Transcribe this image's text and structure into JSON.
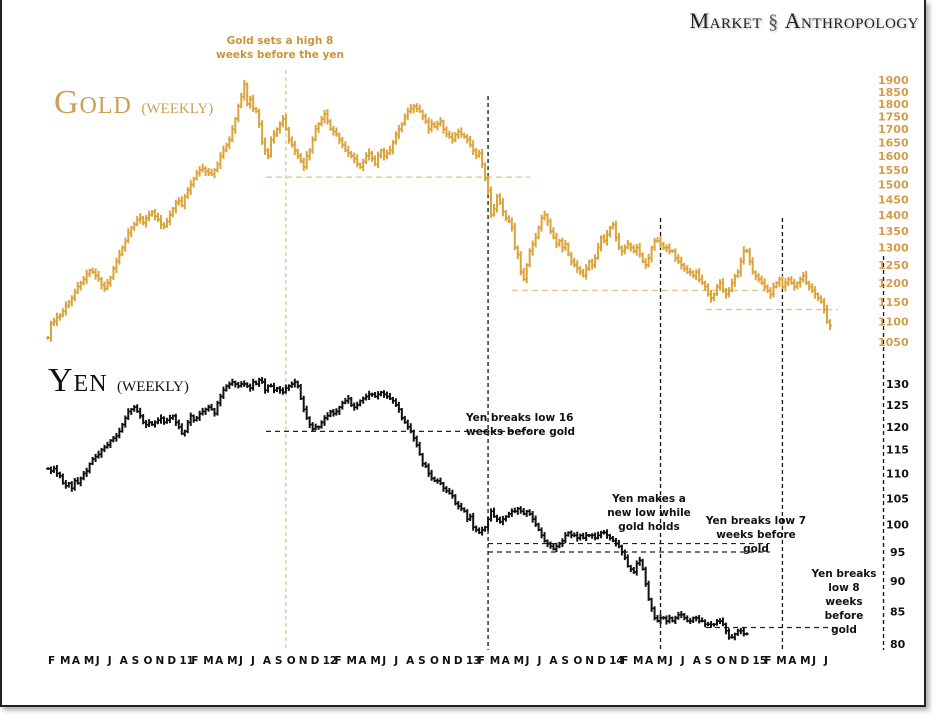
{
  "brand": {
    "left": "Market",
    "right": "Anthropology",
    "icon": "dna-helix-icon"
  },
  "chart_data": [
    {
      "type": "line",
      "name": "gold",
      "title": "Gold",
      "subtitle": "(WEEKLY)",
      "color": "#dba33a",
      "scale": "log",
      "ylim": [
        1040,
        1920
      ],
      "yticks": [
        1900,
        1850,
        1800,
        1750,
        1700,
        1650,
        1600,
        1550,
        1500,
        1450,
        1400,
        1350,
        1300,
        1250,
        1200,
        1150,
        1100,
        1050
      ],
      "x_start": "2010-02",
      "x_end": "2015-07",
      "values": [
        1060,
        1095,
        1100,
        1110,
        1115,
        1125,
        1140,
        1150,
        1160,
        1175,
        1190,
        1200,
        1210,
        1225,
        1235,
        1230,
        1220,
        1210,
        1195,
        1185,
        1200,
        1215,
        1240,
        1260,
        1280,
        1300,
        1320,
        1345,
        1360,
        1370,
        1385,
        1390,
        1375,
        1390,
        1400,
        1410,
        1395,
        1385,
        1370,
        1365,
        1380,
        1400,
        1420,
        1440,
        1445,
        1430,
        1460,
        1480,
        1500,
        1520,
        1540,
        1550,
        1555,
        1545,
        1540,
        1535,
        1550,
        1570,
        1600,
        1620,
        1640,
        1660,
        1700,
        1740,
        1790,
        1830,
        1880,
        1800,
        1820,
        1780,
        1770,
        1720,
        1650,
        1620,
        1600,
        1660,
        1680,
        1700,
        1720,
        1740,
        1700,
        1660,
        1640,
        1620,
        1600,
        1580,
        1560,
        1600,
        1620,
        1660,
        1700,
        1720,
        1740,
        1760,
        1730,
        1700,
        1690,
        1680,
        1660,
        1640,
        1620,
        1610,
        1600,
        1590,
        1570,
        1560,
        1580,
        1600,
        1610,
        1590,
        1570,
        1600,
        1620,
        1600,
        1610,
        1620,
        1650,
        1680,
        1700,
        1720,
        1750,
        1770,
        1780,
        1790,
        1780,
        1770,
        1750,
        1730,
        1700,
        1720,
        1710,
        1720,
        1730,
        1700,
        1680,
        1670,
        1660,
        1680,
        1690,
        1680,
        1670,
        1660,
        1640,
        1620,
        1600,
        1610,
        1570,
        1520,
        1480,
        1400,
        1420,
        1460,
        1440,
        1410,
        1390,
        1380,
        1360,
        1300,
        1280,
        1230,
        1210,
        1250,
        1290,
        1310,
        1330,
        1360,
        1390,
        1400,
        1380,
        1350,
        1330,
        1310,
        1320,
        1300,
        1310,
        1280,
        1260,
        1250,
        1240,
        1230,
        1220,
        1240,
        1260,
        1250,
        1270,
        1300,
        1330,
        1320,
        1340,
        1360,
        1370,
        1330,
        1300,
        1290,
        1300,
        1310,
        1300,
        1290,
        1300,
        1280,
        1260,
        1250,
        1270,
        1300,
        1320,
        1320,
        1310,
        1300,
        1300,
        1290,
        1290,
        1270,
        1260,
        1250,
        1240,
        1230,
        1230,
        1220,
        1230,
        1210,
        1200,
        1190,
        1170,
        1160,
        1170,
        1190,
        1200,
        1180,
        1170,
        1180,
        1200,
        1220,
        1230,
        1260,
        1290,
        1290,
        1260,
        1230,
        1220,
        1210,
        1200,
        1190,
        1180,
        1170,
        1190,
        1200,
        1210,
        1190,
        1200,
        1210,
        1200,
        1190,
        1200,
        1210,
        1220,
        1200,
        1190,
        1180,
        1170,
        1160,
        1150,
        1130,
        1100,
        1090
      ],
      "reference_lines": [
        {
          "value": 1525,
          "label": "gold-range-low-2011"
        },
        {
          "value": 1180,
          "label": "gold-low-2013"
        },
        {
          "value": 1130,
          "label": "gold-low-2014"
        }
      ]
    },
    {
      "type": "line",
      "name": "yen",
      "title": "Yen",
      "subtitle": "(WEEKLY)",
      "color": "#111111",
      "scale": "log",
      "ylim": [
        79,
        132
      ],
      "yticks": [
        130,
        125,
        120,
        115,
        110,
        105,
        100,
        95,
        90,
        85,
        80
      ],
      "x_start": "2010-02",
      "x_end": "2015-07",
      "values": [
        111,
        110.5,
        111,
        110,
        109.5,
        108,
        107.5,
        108,
        107,
        108.5,
        108,
        109,
        110,
        110.5,
        112,
        113,
        113.5,
        114,
        115,
        115.5,
        116,
        117,
        117.5,
        118,
        119,
        120.5,
        122,
        123.5,
        124,
        124.5,
        123.5,
        122.5,
        121,
        120.5,
        121,
        120.5,
        121,
        121.5,
        122,
        121,
        121.5,
        122,
        122.5,
        121,
        120,
        118.5,
        119,
        121,
        122.5,
        121.5,
        122,
        123,
        123.5,
        124,
        124.5,
        124,
        123,
        125.5,
        127,
        128.5,
        129.5,
        130,
        130.5,
        130,
        129.5,
        130,
        130,
        129.5,
        129,
        130.5,
        130,
        131,
        130.5,
        128.5,
        129.5,
        129.5,
        128.5,
        129,
        128.5,
        128,
        129,
        129.5,
        130,
        130.5,
        129.5,
        126.5,
        124,
        122,
        120.5,
        119.5,
        120,
        120,
        121,
        122,
        122.5,
        123.5,
        123,
        123.5,
        124.5,
        125.5,
        126,
        126.5,
        125,
        124.5,
        125,
        126,
        126.5,
        127,
        127.5,
        127.5,
        127,
        127.5,
        128,
        127.5,
        127,
        126.5,
        126,
        125,
        124,
        122,
        121,
        120,
        119,
        117.5,
        116,
        114,
        112,
        111.5,
        110,
        109,
        108.5,
        108.5,
        108,
        107,
        106.5,
        106,
        105.5,
        104,
        103.5,
        103,
        102.5,
        101,
        101.5,
        99.5,
        99,
        98.5,
        99,
        99.5,
        101,
        102.5,
        101.5,
        101,
        100.5,
        101,
        101.5,
        102,
        102.5,
        102.5,
        103,
        102.5,
        102,
        102.5,
        102,
        101,
        100,
        99,
        98,
        97,
        96.5,
        96,
        95.5,
        96,
        96.5,
        97,
        98,
        98.5,
        98,
        98,
        97.5,
        98,
        97.5,
        98,
        98,
        98,
        97.5,
        98,
        98.5,
        98.5,
        98,
        97.5,
        97,
        96.5,
        96,
        95,
        94,
        92.5,
        92,
        91.5,
        93,
        93.5,
        92,
        89.5,
        87,
        85.5,
        84,
        83.5,
        84,
        84,
        83.5,
        84,
        83.5,
        84,
        84.5,
        84.5,
        84,
        83.5,
        83.5,
        84,
        84,
        83.5,
        83.5,
        83,
        83,
        83,
        83,
        83.5,
        83.5,
        83,
        82,
        81,
        81,
        81.5,
        82,
        82,
        81.5,
        81.5
      ],
      "reference_lines": [
        {
          "value": 119,
          "label": "yen-low-2012"
        },
        {
          "value": 96.5,
          "label": "yen-support-upper"
        },
        {
          "value": 95,
          "label": "yen-support-lower"
        },
        {
          "value": 82.5,
          "label": "yen-low-2015"
        }
      ]
    }
  ],
  "x_axis_labels": [
    "F",
    "M",
    "A",
    "M",
    "J",
    "J",
    "A",
    "S",
    "O",
    "N",
    "D",
    "11",
    "F",
    "M",
    "A",
    "M",
    "J",
    "J",
    "A",
    "S",
    "O",
    "N",
    "D",
    "12",
    "F",
    "M",
    "A",
    "M",
    "J",
    "J",
    "A",
    "S",
    "O",
    "N",
    "D",
    "13",
    "F",
    "M",
    "A",
    "M",
    "J",
    "J",
    "A",
    "S",
    "O",
    "N",
    "D",
    "14",
    "F",
    "M",
    "A",
    "M",
    "J",
    "J",
    "A",
    "S",
    "O",
    "N",
    "D",
    "15",
    "F",
    "M",
    "A",
    "M",
    "J",
    "J"
  ],
  "x_axis_display": "F M A M J  JA S ON D11 F MAM J  JA S O N D12 F MA M J J  A S O N D13 F M A M J J  A S  ON D14F M  AM J  J A S  ON D15F M  A M J  J",
  "vertical_markers": [
    {
      "week": 80,
      "color": "#e6c48a",
      "label": "gold-high-marker"
    },
    {
      "week": 148,
      "color": "#111111",
      "label": "yen-break-2013"
    },
    {
      "week": 206,
      "color": "#111111",
      "label": "yen-new-low-2014"
    },
    {
      "week": 247,
      "color": "#111111",
      "label": "yen-break-sep-2014"
    },
    {
      "week": 281,
      "color": "#111111",
      "label": "yen-break-may-2015"
    }
  ],
  "annotations": [
    {
      "text_line1": "Gold sets a high 8",
      "text_line2": "weeks before the yen",
      "color": "gold"
    },
    {
      "text_line1": "Yen breaks low 16",
      "text_line2": "weeks before gold",
      "color": "black"
    },
    {
      "text_line1": "Yen makes a",
      "text_line2": "new low while",
      "text_line3": "gold holds",
      "color": "black"
    },
    {
      "text_line1": "Yen breaks low 7",
      "text_line2": "weeks before gold",
      "color": "black"
    },
    {
      "text_line1": "Yen breaks",
      "text_line2": "low 8 weeks",
      "text_line3": "before gold",
      "color": "black"
    }
  ]
}
